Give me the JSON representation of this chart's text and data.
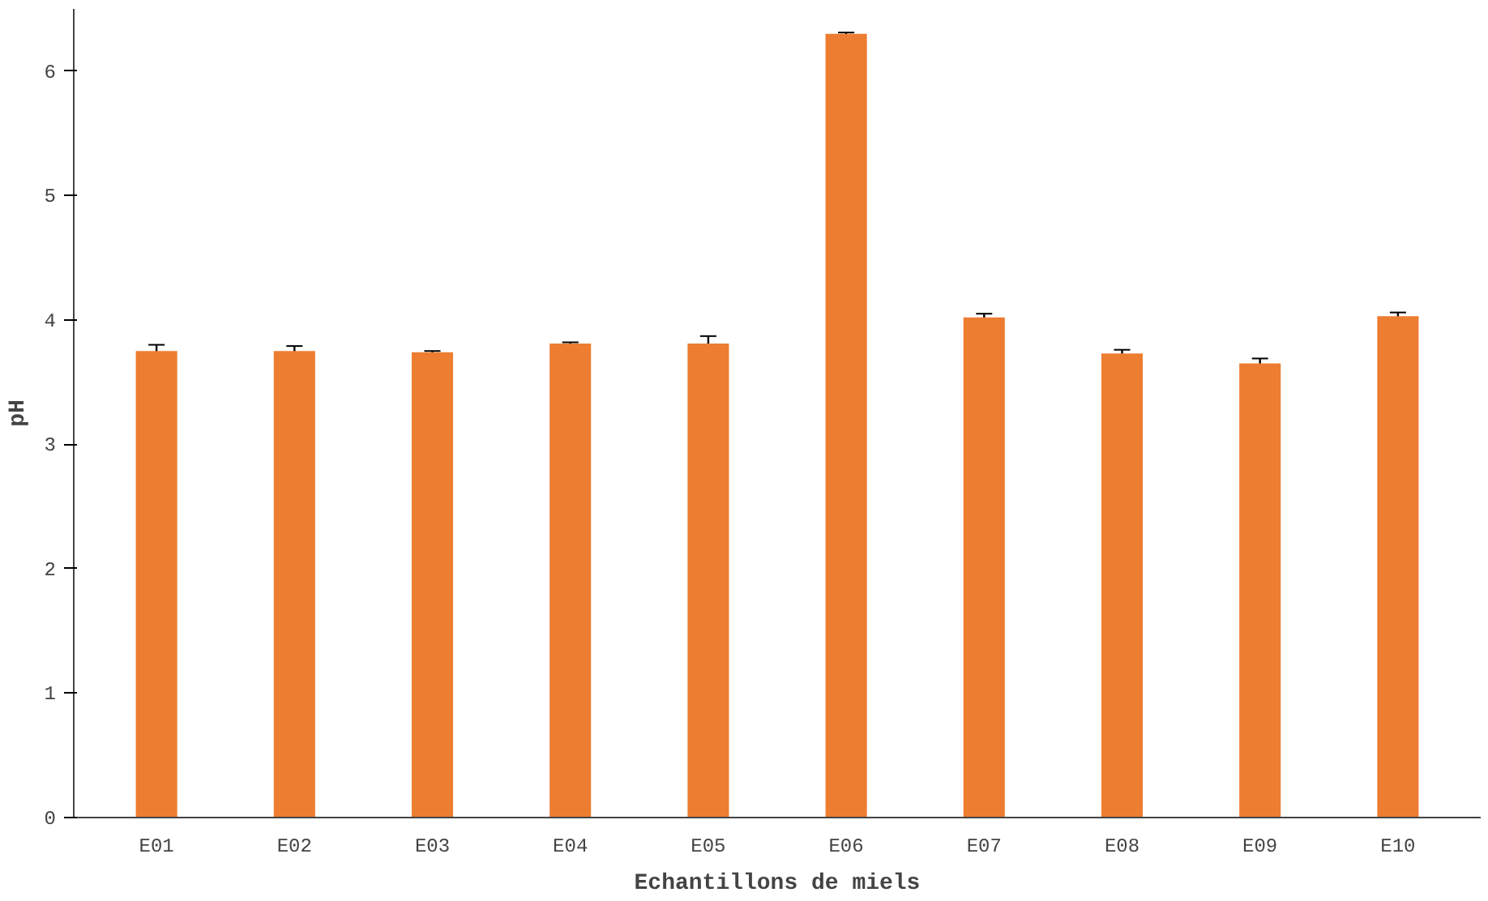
{
  "chart_data": {
    "type": "bar",
    "xlabel": "Echantillons de miels",
    "ylabel": "pH",
    "categories": [
      "E01",
      "E02",
      "E03",
      "E04",
      "E05",
      "E06",
      "E07",
      "E08",
      "E09",
      "E10"
    ],
    "values": [
      3.75,
      3.75,
      3.74,
      3.81,
      3.81,
      6.3,
      4.02,
      3.73,
      3.65,
      4.03
    ],
    "errors": [
      0.05,
      0.04,
      0.01,
      0.01,
      0.06,
      0.01,
      0.03,
      0.03,
      0.04,
      0.03
    ],
    "color": "#ed7d31",
    "ylim": [
      0,
      6.5
    ],
    "yticks": [
      0,
      1,
      2,
      3,
      4,
      5,
      6
    ],
    "grid": false
  }
}
